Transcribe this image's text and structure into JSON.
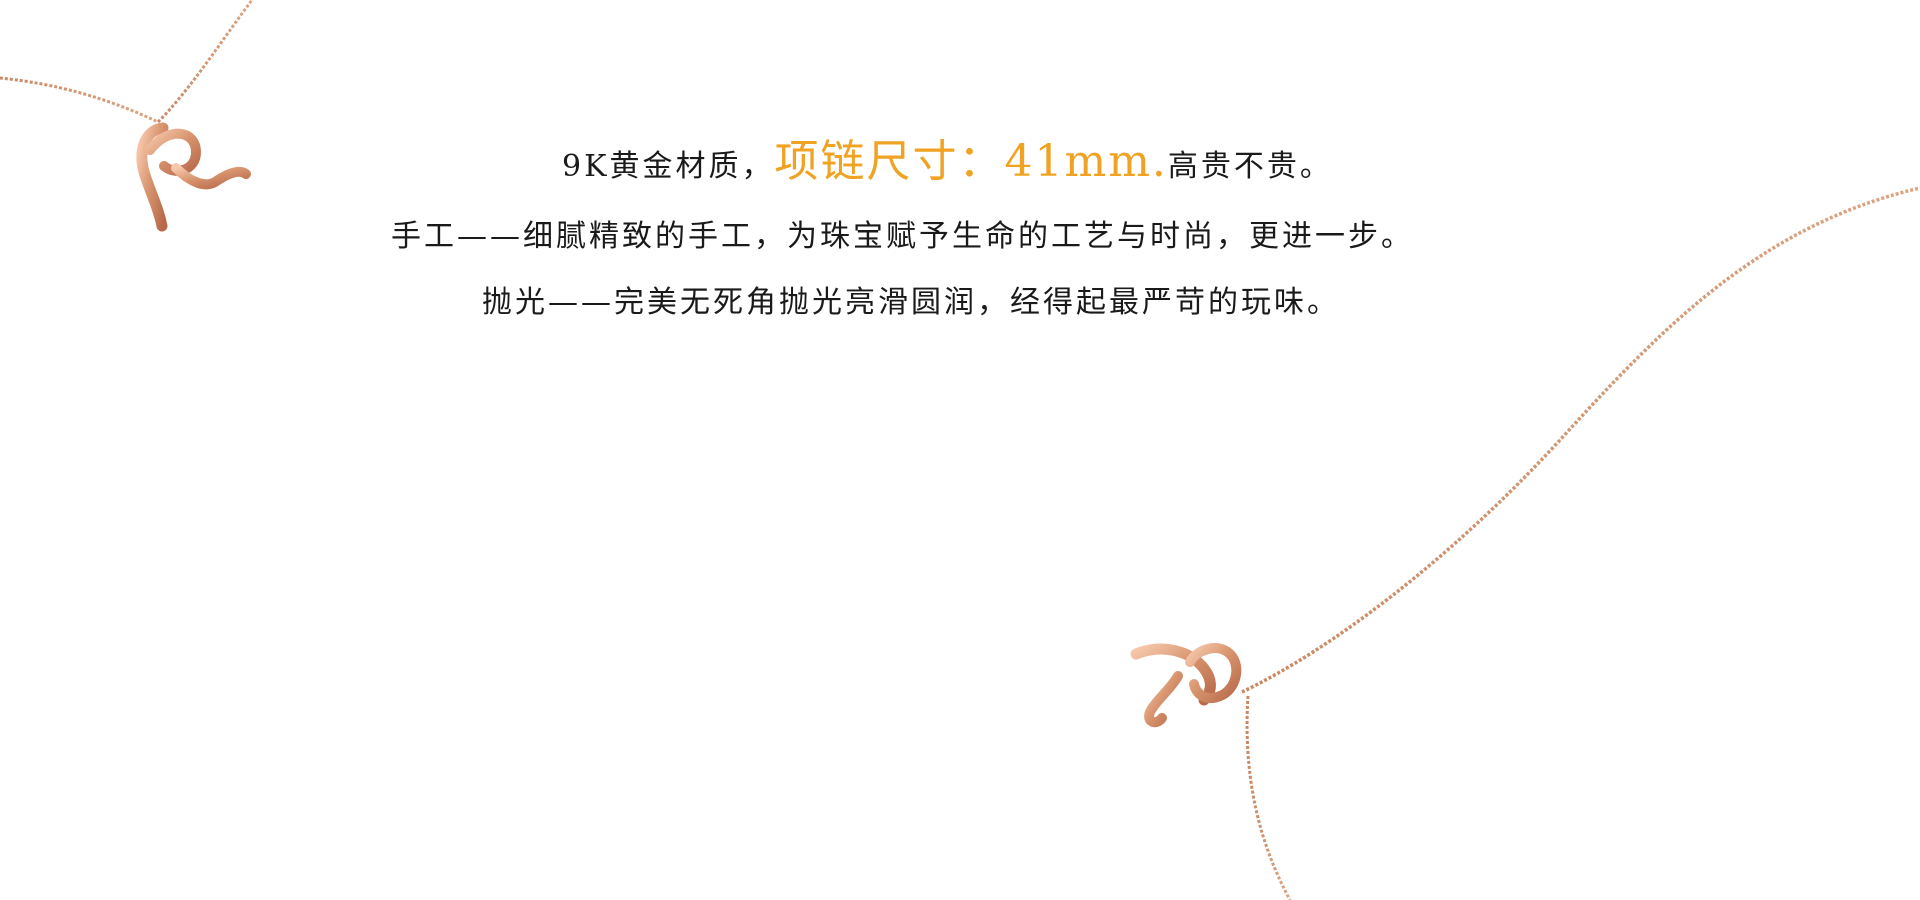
{
  "copy": {
    "line1_lead": "9K黄金材质，",
    "line1_accent": "项链尺寸：41mm.",
    "line1_tail": "高贵不贵。",
    "line2": "手工——细腻精致的手工，为珠宝赋予生命的工艺与时尚，更进一步。",
    "line3": "抛光——完美无死角抛光亮滑圆润，经得起最严苛的玩味。"
  },
  "colors": {
    "background": "#ffffff",
    "text": "#1a1a1a",
    "accent": "#f0a323",
    "rose_gold": "#d99670"
  }
}
